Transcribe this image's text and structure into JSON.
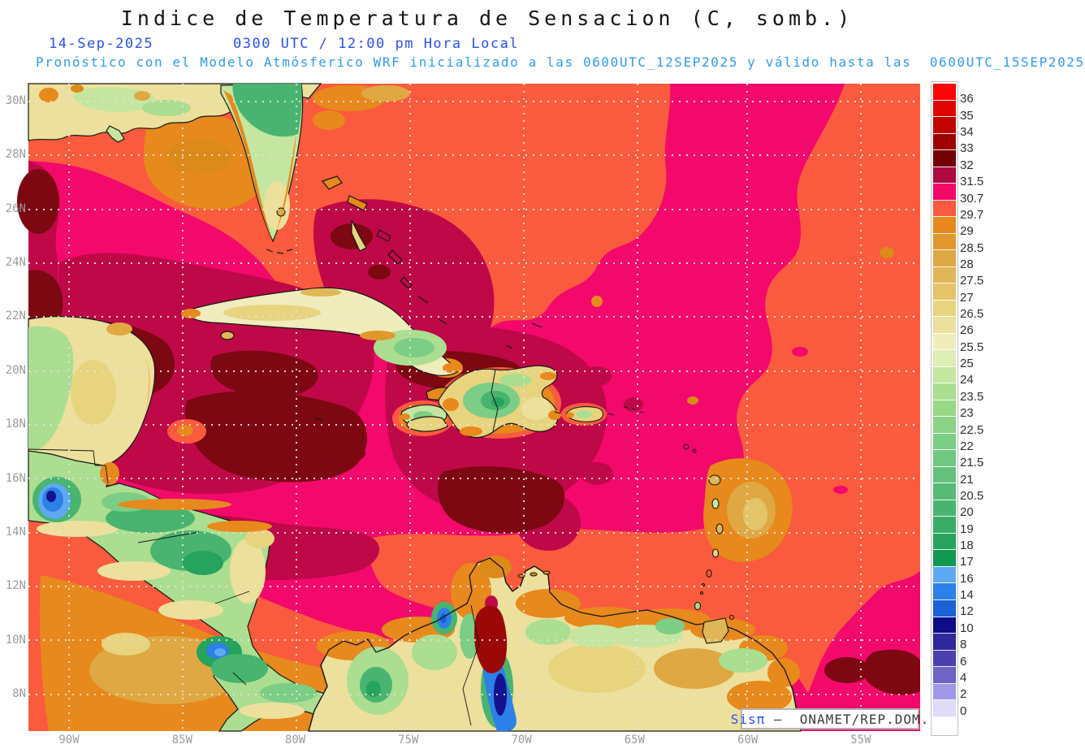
{
  "header": {
    "title": "Indice de Temperatura de Sensacion (C, somb.)",
    "date": "14-Sep-2025",
    "time": "0300 UTC / 12:00 pm Hora Local",
    "forecast": "Pronóstico con el Modelo Atmósferico WRF inicializado a las 0600UTC_12SEP2025 y válido hasta las  0600UTC_15SEP2025"
  },
  "credit": {
    "brand": "Sisπ",
    "rest": " –  ONAMET/REP.DOM."
  },
  "axes": {
    "lat": [
      "30N",
      "28N",
      "26N",
      "24N",
      "22N",
      "20N",
      "18N",
      "16N",
      "14N",
      "12N",
      "10N",
      "8N"
    ],
    "lon": [
      "90W",
      "85W",
      "80W",
      "75W",
      "70W",
      "65W",
      "60W",
      "55W"
    ]
  },
  "colorbar": {
    "cells": [
      {
        "color": "#fa0606",
        "label": "36"
      },
      {
        "color": "#de0404",
        "label": "35"
      },
      {
        "color": "#c10303",
        "label": "34"
      },
      {
        "color": "#9e0202",
        "label": "33"
      },
      {
        "color": "#730106",
        "label": "32"
      },
      {
        "color": "#b00a44",
        "label": "31.5"
      },
      {
        "color": "#f20968",
        "label": "30.7"
      },
      {
        "color": "#fa5a3d",
        "label": "29.7"
      },
      {
        "color": "#e7891c",
        "label": "29"
      },
      {
        "color": "#e0982c",
        "label": "28.5"
      },
      {
        "color": "#dea843",
        "label": "28"
      },
      {
        "color": "#e0b656",
        "label": "27.5"
      },
      {
        "color": "#e3c469",
        "label": "27"
      },
      {
        "color": "#e8d37f",
        "label": "26.5"
      },
      {
        "color": "#ece09c",
        "label": "26"
      },
      {
        "color": "#f0ecbc",
        "label": "25.5"
      },
      {
        "color": "#dfedb6",
        "label": "25"
      },
      {
        "color": "#c5e6a0",
        "label": "24"
      },
      {
        "color": "#abde90",
        "label": "23.5"
      },
      {
        "color": "#98d887",
        "label": "23"
      },
      {
        "color": "#8ad389",
        "label": "22.5"
      },
      {
        "color": "#7ccd85",
        "label": "22"
      },
      {
        "color": "#70c782",
        "label": "21.5"
      },
      {
        "color": "#64c17e",
        "label": "21"
      },
      {
        "color": "#57bb77",
        "label": "20.5"
      },
      {
        "color": "#49b470",
        "label": "20"
      },
      {
        "color": "#38ac67",
        "label": "19"
      },
      {
        "color": "#26a35d",
        "label": "18"
      },
      {
        "color": "#109951",
        "label": "17"
      },
      {
        "color": "#5fa9f2",
        "label": "16"
      },
      {
        "color": "#2c80e8",
        "label": "14"
      },
      {
        "color": "#1b60d5",
        "label": "12"
      },
      {
        "color": "#0e0c86",
        "label": "10"
      },
      {
        "color": "#30279c",
        "label": "8"
      },
      {
        "color": "#4b40ae",
        "label": "6"
      },
      {
        "color": "#6f63c5",
        "label": "4"
      },
      {
        "color": "#a198ea",
        "label": "2"
      },
      {
        "color": "#dedcf7",
        "label": "0"
      },
      {
        "color": "#ffffff",
        "label": null
      }
    ]
  },
  "chart_data": {
    "type": "heatmap",
    "title": "Indice de Temperatura de Sensacion (C, somb.)",
    "valid": "14-Sep-2025 0300 UTC / 12:00 pm Hora Local",
    "model": "WRF inicializado 0600UTC_12SEP2025, válido hasta 0600UTC_15SEP2025",
    "lat_ticks": [
      "30N",
      "28N",
      "26N",
      "24N",
      "22N",
      "20N",
      "18N",
      "16N",
      "14N",
      "12N",
      "10N",
      "8N"
    ],
    "lon_ticks": [
      "90W",
      "85W",
      "80W",
      "75W",
      "70W",
      "65W",
      "60W",
      "55W"
    ],
    "scale_values": [
      36,
      35,
      34,
      33,
      32,
      31.5,
      30.7,
      29.7,
      29,
      28.5,
      28,
      27.5,
      27,
      26.5,
      26,
      25.5,
      25,
      24,
      23.5,
      23,
      22.5,
      22,
      21.5,
      21,
      20.5,
      20,
      19,
      18,
      17,
      16,
      14,
      12,
      10,
      8,
      6,
      4,
      2,
      0
    ],
    "legend_position": "right"
  }
}
